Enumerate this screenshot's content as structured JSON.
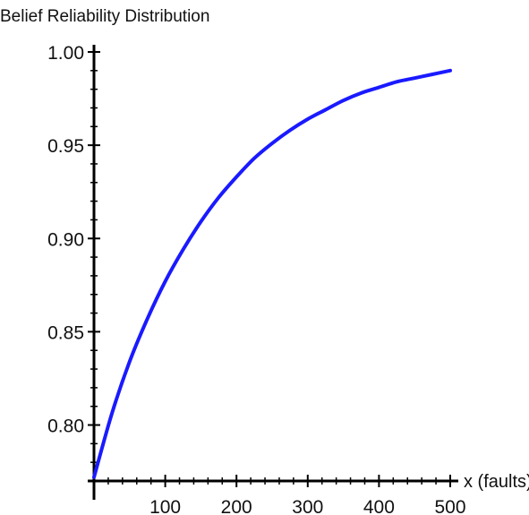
{
  "chart_data": {
    "type": "line",
    "title": "Belief Reliability Distribution",
    "xlabel": "x (faults)",
    "ylabel": "",
    "xlim": [
      0,
      500
    ],
    "ylim": [
      0.77,
      1.0
    ],
    "x_ticks": [
      100,
      200,
      300,
      400,
      500
    ],
    "y_ticks": [
      0.8,
      0.85,
      0.9,
      0.95,
      1.0
    ],
    "x_tick_labels": [
      "100",
      "200",
      "300",
      "400",
      "500"
    ],
    "y_tick_labels": [
      "0.80",
      "0.85",
      "0.90",
      "0.95",
      "1.00"
    ],
    "grid": false,
    "legend": "none",
    "series": [
      {
        "color": "#1a1aff",
        "x": [
          0,
          25,
          50,
          75,
          100,
          125,
          150,
          175,
          200,
          225,
          250,
          275,
          300,
          325,
          350,
          375,
          400,
          425,
          450,
          475,
          500
        ],
        "y": [
          0.772,
          0.806,
          0.834,
          0.857,
          0.877,
          0.894,
          0.909,
          0.922,
          0.933,
          0.943,
          0.951,
          0.958,
          0.964,
          0.969,
          0.974,
          0.978,
          0.981,
          0.984,
          0.986,
          0.988,
          0.99
        ]
      }
    ]
  }
}
